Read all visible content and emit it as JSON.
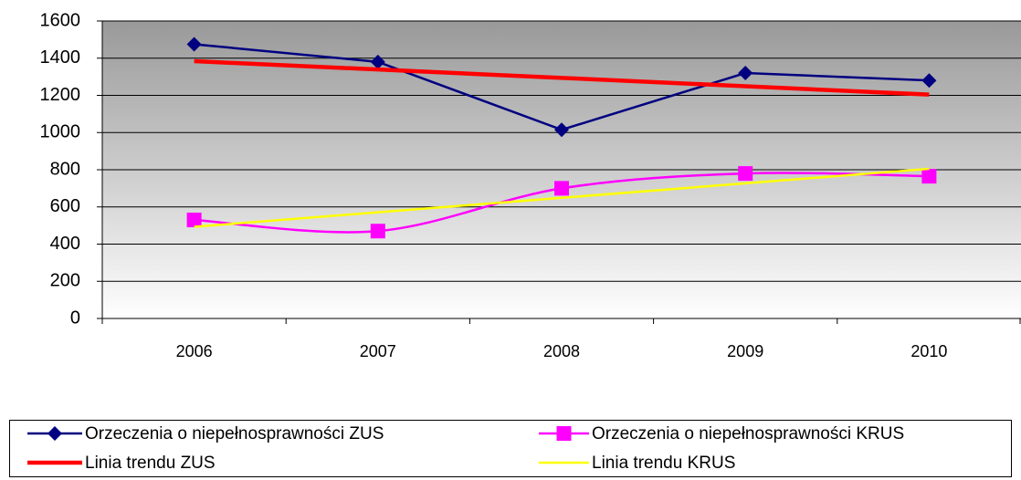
{
  "chart_data": {
    "type": "line",
    "categories": [
      "2006",
      "2007",
      "2008",
      "2009",
      "2010"
    ],
    "series": [
      {
        "name": "Orzeczenia o niepełnosprawności ZUS",
        "color": "#000080",
        "marker": "diamond",
        "values": [
          1475,
          1380,
          1015,
          1320,
          1280
        ]
      },
      {
        "name": "Orzeczenia o niepełnosprawności KRUS",
        "color": "#ff00ff",
        "marker": "square",
        "smooth": true,
        "values": [
          530,
          470,
          700,
          780,
          765
        ]
      },
      {
        "name": "Linia trendu ZUS",
        "color": "#ff0000",
        "values": [
          1384,
          1339,
          1294,
          1249,
          1204
        ]
      },
      {
        "name": "Linia trendu KRUS",
        "color": "#ffff00",
        "values": [
          493,
          571,
          649,
          727,
          805
        ]
      }
    ],
    "ylim": [
      0,
      1600
    ],
    "yticks": [
      0,
      200,
      400,
      600,
      800,
      1000,
      1200,
      1400,
      1600
    ],
    "grid": true,
    "legend": "bottom"
  }
}
